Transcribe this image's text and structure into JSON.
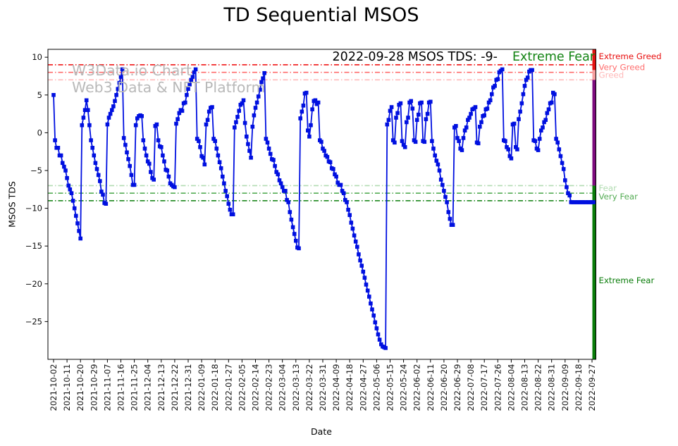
{
  "watermark": {
    "line1": "W3Data.io Chart",
    "line2": "Web3 Data & NFT Platform"
  },
  "annotation": {
    "text": "2022-09-28 MSOS TDS: -9-",
    "status": "Extreme Fear",
    "status_color": "#128312"
  },
  "chart_data": {
    "type": "line",
    "title": "TD Sequential MSOS",
    "xlabel": "Date",
    "ylabel": "MSOS TDS",
    "ylim": [
      -30.1,
      11.05
    ],
    "yticks": [
      10,
      5,
      0,
      -5,
      -10,
      -15,
      -20,
      -25
    ],
    "x_start_date": "2021-10-02",
    "x_end_date": "2022-09-28",
    "x_tick_interval_days": 9,
    "x_tick_labels": [
      "2021-10-02",
      "2021-10-11",
      "2021-10-20",
      "2021-10-29",
      "2021-11-07",
      "2021-11-16",
      "2021-11-25",
      "2021-12-04",
      "2021-12-13",
      "2021-12-22",
      "2021-12-31",
      "2022-01-09",
      "2022-01-18",
      "2022-01-27",
      "2022-02-05",
      "2022-02-14",
      "2022-02-23",
      "2022-03-04",
      "2022-03-13",
      "2022-03-22",
      "2022-03-31",
      "2022-04-09",
      "2022-04-18",
      "2022-04-27",
      "2022-05-06",
      "2022-05-15",
      "2022-05-24",
      "2022-06-02",
      "2022-06-11",
      "2022-06-20",
      "2022-06-29",
      "2022-07-08",
      "2022-07-17",
      "2022-07-26",
      "2022-08-04",
      "2022-08-13",
      "2022-08-22",
      "2022-08-31",
      "2022-09-09",
      "2022-09-18",
      "2022-09-27"
    ],
    "grid": false,
    "legend": "none",
    "line_color": "#0010e0",
    "marker": "square",
    "threshold_lines": [
      {
        "value": 9,
        "label": "Extreme Greed",
        "color": "#f01515"
      },
      {
        "value": 8,
        "label": "Very Greed",
        "color": "#ff6e6e"
      },
      {
        "value": 7,
        "label": "Greed",
        "color": "#ffb9b9"
      },
      {
        "value": -7,
        "label": "Fear",
        "color": "#b2dcb2"
      },
      {
        "value": -8,
        "label": "Very Fear",
        "color": "#55ac55"
      },
      {
        "value": -9,
        "label": "Extreme Fear",
        "color": "#0b7d0b"
      }
    ],
    "zone_bar": [
      {
        "from": 11.05,
        "to": 8.3,
        "color": "#e31212"
      },
      {
        "from": 8.3,
        "to": 7,
        "color": "#f59f9f"
      },
      {
        "from": 7,
        "to": -7,
        "color": "#7d0c7d"
      },
      {
        "from": -7,
        "to": -30.1,
        "color": "#0a7c0a"
      }
    ],
    "zone_labels": [
      {
        "label": "Extreme Greed",
        "color": "#e80f0f"
      },
      {
        "label": "Very Greed",
        "color": "#ff6e6e"
      },
      {
        "label": "Greed",
        "color": "#ffb9b9"
      },
      {
        "label": "Fear",
        "color": "#b2dcb2"
      },
      {
        "label": "Very Fear",
        "color": "#55ac55"
      },
      {
        "label": "Extreme Fear",
        "color": "#0b7d0b"
      }
    ],
    "series": [
      {
        "name": "MSOS TDS",
        "x_unit": "days since 2021-10-02",
        "values_daily": [
          5,
          -1,
          -2,
          -2,
          -3,
          -3,
          -4,
          -4.5,
          -5,
          -6,
          -7,
          -7.5,
          -8,
          -9,
          -10,
          -11,
          -12,
          -13,
          -14,
          1,
          2,
          3,
          4.3,
          3,
          1,
          -1,
          -2,
          -3,
          -4,
          -4.8,
          -5.6,
          -6.4,
          -7.8,
          -8.2,
          -9.3,
          -9.4,
          1.1,
          2,
          2.5,
          3,
          3.5,
          4.2,
          5,
          5.8,
          6.6,
          7.4,
          8.4,
          -0.7,
          -1.6,
          -2.6,
          -3.5,
          -4.4,
          -5.6,
          -6.9,
          -6.9,
          1,
          1.9,
          2.2,
          2.3,
          2.2,
          -1,
          -2.1,
          -3,
          -3.8,
          -4.1,
          -5.2,
          -6,
          -6.2,
          0.9,
          1.1,
          -1,
          -1.8,
          -1.9,
          -3,
          -3.8,
          -4.9,
          -5,
          -5.8,
          -6.7,
          -6.9,
          -7.1,
          -7.2,
          1.2,
          1.8,
          2.6,
          3,
          2.9,
          3.9,
          4,
          5,
          5.8,
          6.4,
          7,
          7.4,
          8,
          8.4,
          -0.8,
          -1.1,
          -1.9,
          -3.1,
          -3.3,
          -4.2,
          1.1,
          1.7,
          2.8,
          3.3,
          3.4,
          -0.8,
          -1.1,
          -2.1,
          -3,
          -3.9,
          -4.7,
          -5.8,
          -6.7,
          -7.7,
          -8.4,
          -9.4,
          -10.2,
          -10.8,
          -10.8,
          0.7,
          1.4,
          2.1,
          2.9,
          3.7,
          3.9,
          4.3,
          1.3,
          -0.5,
          -1.5,
          -2.4,
          -3.3,
          0.8,
          2.3,
          3.3,
          4,
          4.8,
          5.7,
          6.7,
          7.2,
          7.9,
          -0.8,
          -1.3,
          -2.1,
          -2.8,
          -3.5,
          -3.6,
          -4.4,
          -5.2,
          -5.5,
          -6.3,
          -6.7,
          -7.2,
          -7.7,
          -7.7,
          -8.9,
          -9.2,
          -10.5,
          -11.5,
          -12.5,
          -13.4,
          -14.3,
          -15.2,
          -15.3,
          1.9,
          2.8,
          3.6,
          5.2,
          5.3,
          0.3,
          -0.5,
          1,
          3.1,
          4.2,
          4.3,
          3.8,
          4,
          -1,
          -1.2,
          -2.1,
          -2.4,
          -3,
          -3.2,
          -3.8,
          -3.9,
          -4.7,
          -4.8,
          -5.5,
          -5.8,
          -6.6,
          -6.9,
          -6.9,
          -7.7,
          -8,
          -8.9,
          -9.2,
          -10.2,
          -10.9,
          -11.9,
          -12.7,
          -13.6,
          -14.4,
          -15.1,
          -16.1,
          -16.9,
          -17.6,
          -18.4,
          -19.2,
          -20.1,
          -20.9,
          -21.7,
          -22.6,
          -23.4,
          -24.2,
          -25.1,
          -25.9,
          -26.7,
          -27.4,
          -28,
          -28.3,
          -28.4,
          -28.5,
          1.1,
          1.7,
          2.9,
          3.4,
          -1,
          -1.3,
          2,
          2.6,
          3.7,
          3.9,
          -1.1,
          -1.6,
          -1.9,
          1.4,
          2,
          4,
          4.2,
          3.2,
          -1,
          -1.2,
          1.7,
          2.4,
          3.9,
          4,
          -1.1,
          -1.2,
          1.8,
          2.5,
          4,
          4.1,
          -1.1,
          -2.1,
          -3,
          -3.7,
          -4.2,
          -5,
          -6.2,
          -6.9,
          -7.7,
          -8.5,
          -9.2,
          -10.5,
          -11.4,
          -12.2,
          -12.2,
          0.7,
          0.9,
          -0.7,
          -1.1,
          -2.1,
          -2.3,
          -0.7,
          0.3,
          0.7,
          1.7,
          2,
          2.5,
          3.1,
          3.2,
          3.4,
          -1.3,
          -1.4,
          0.8,
          1.4,
          2.2,
          2.3,
          3.1,
          3.2,
          4,
          4.3,
          5.1,
          6,
          6.2,
          7,
          7.1,
          8,
          8.2,
          8.4,
          -1,
          -1.1,
          -1.9,
          -2.2,
          -3.1,
          -3.4,
          1.1,
          1.2,
          -1.9,
          -2.2,
          1.8,
          2.8,
          3.9,
          5.1,
          6.2,
          7,
          7.3,
          8.1,
          8.3,
          8.3,
          -1,
          -1.1,
          -2.1,
          -2.3,
          -0.8,
          0.3,
          0.7,
          1.4,
          1.7,
          2.6,
          3.1,
          3.9,
          4,
          5.3,
          5.1,
          -0.8,
          -1.3,
          -2.2,
          -3.1,
          -4,
          -4.8,
          -6.3,
          -7.2,
          -8,
          -8.3,
          -9.2,
          -9.2,
          -9.2,
          -9.2,
          -9.2,
          -9.2,
          -9.2,
          -9.2,
          -9.2,
          -9.2,
          -9.2,
          -9.2,
          -9.2,
          -9.2,
          -9.2,
          -9.2
        ]
      }
    ]
  }
}
